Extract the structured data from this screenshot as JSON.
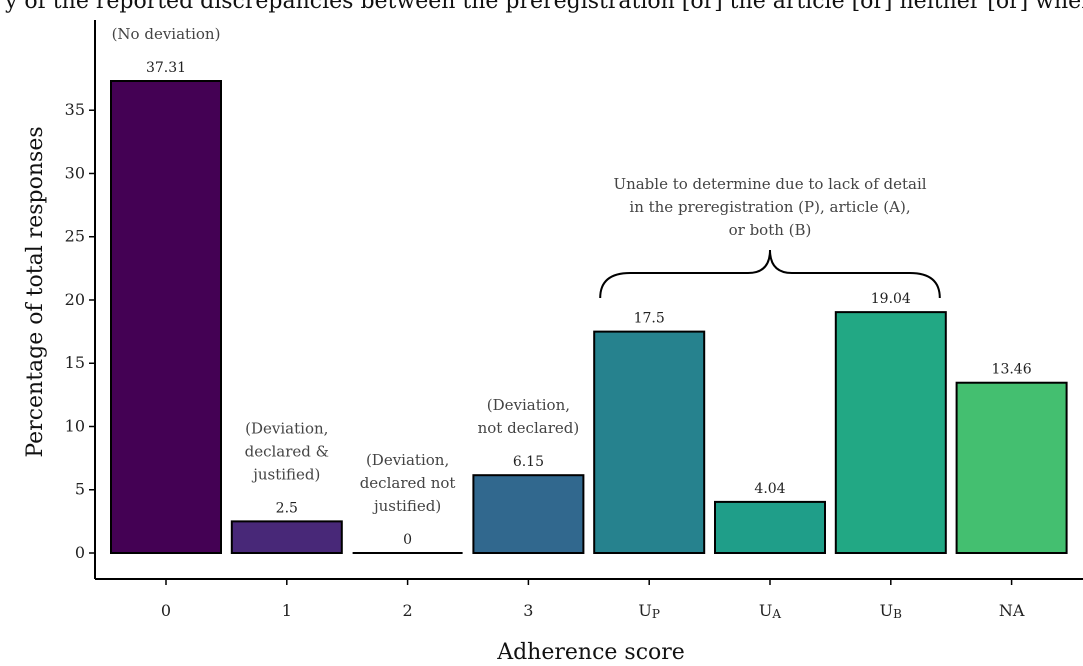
{
  "header_text": "y of the reported discrepancies between the preregistration [or] the article [or] neither [or] where it applied",
  "chart_data": {
    "type": "bar",
    "xlabel": "Adherence score",
    "ylabel": "Percentage of total responses",
    "ylim": [
      0,
      37.31
    ],
    "yticks": [
      0,
      5,
      10,
      15,
      20,
      25,
      30,
      35
    ],
    "categories": [
      {
        "label": "0"
      },
      {
        "label": "1"
      },
      {
        "label": "2"
      },
      {
        "label": "3"
      },
      {
        "label": "U",
        "subscript": "P"
      },
      {
        "label": "U",
        "subscript": "A"
      },
      {
        "label": "U",
        "subscript": "B"
      },
      {
        "label": "NA"
      }
    ],
    "values": [
      37.31,
      2.5,
      0,
      6.15,
      17.5,
      4.04,
      19.04,
      13.46
    ],
    "value_labels": [
      "37.31",
      "2.5",
      "0",
      "6.15",
      "17.5",
      "4.04",
      "19.04",
      "13.46"
    ],
    "colors": [
      "#440154",
      "#482878",
      "#3e4a89",
      "#31688e",
      "#26828e",
      "#1f9e89",
      "#22a884",
      "#44bf70"
    ],
    "annotations": [
      {
        "category_index": 0,
        "lines": [
          "(No deviation)"
        ]
      },
      {
        "category_index": 1,
        "lines": [
          "(Deviation,",
          "declared &",
          "justified)"
        ]
      },
      {
        "category_index": 2,
        "lines": [
          "(Deviation,",
          "declared not",
          "justified)"
        ]
      },
      {
        "category_index": 3,
        "lines": [
          "(Deviation,",
          "not declared)"
        ]
      }
    ],
    "brace_annotation": {
      "from_index": 4,
      "to_index": 6,
      "lines": [
        "Unable to determine due to lack of detail",
        "in the preregistration (P), article (A),",
        "or both (B)"
      ]
    },
    "grid": false,
    "legend": "none"
  }
}
